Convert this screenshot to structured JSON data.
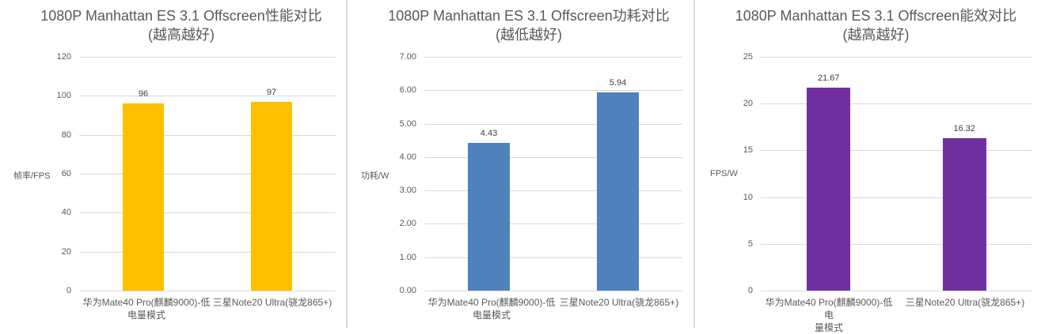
{
  "chart_data": [
    {
      "type": "bar",
      "title": "1080P Manhattan ES 3.1 Offscreen性能对比",
      "subtitle": "(越高越好)",
      "xlabel": "",
      "ylabel": "帧率/FPS",
      "categories": [
        "华为Mate40 Pro(麒麟9000)-低电量模式",
        "三星Note20 Ultra(骁龙865+)"
      ],
      "values": [
        96,
        97
      ],
      "data_labels": [
        "96",
        "97"
      ],
      "ylim": [
        0,
        120
      ],
      "yticks": [
        "0",
        "20",
        "40",
        "60",
        "80",
        "100",
        "120"
      ],
      "bar_color": "#FFC000",
      "grid": true,
      "legend": "none"
    },
    {
      "type": "bar",
      "title": "1080P Manhattan ES 3.1 Offscreen功耗对比",
      "subtitle": "(越低越好)",
      "xlabel": "",
      "ylabel": "功耗/W",
      "categories": [
        "华为Mate40 Pro(麒麟9000)-低电量模式",
        "三星Note20 Ultra(骁龙865+)"
      ],
      "values": [
        4.43,
        5.94
      ],
      "data_labels": [
        "4.43",
        "5.94"
      ],
      "ylim": [
        0,
        7
      ],
      "yticks": [
        "0.00",
        "1.00",
        "2.00",
        "3.00",
        "4.00",
        "5.00",
        "6.00",
        "7.00"
      ],
      "bar_color": "#4F81BD",
      "grid": true,
      "legend": "none"
    },
    {
      "type": "bar",
      "title": "1080P Manhattan ES 3.1 Offscreen能效对比",
      "subtitle": "(越高越好)",
      "xlabel": "",
      "ylabel": "FPS/W",
      "categories": [
        "华为Mate40 Pro(麒麟9000)-低电量模式",
        "三星Note20 Ultra(骁龙865+)"
      ],
      "values": [
        21.67,
        16.32
      ],
      "data_labels": [
        "21.67",
        "16.32"
      ],
      "ylim": [
        0,
        25
      ],
      "yticks": [
        "0",
        "5",
        "10",
        "15",
        "20",
        "25"
      ],
      "bar_color": "#7030A0",
      "grid": true,
      "legend": "none"
    }
  ],
  "panels": [
    {
      "title": "1080P Manhattan ES 3.1 Offscreen性能对比",
      "subtitle": "(越高越好)",
      "ylabel": "帧率/FPS",
      "cat_labels": [
        [
          "华为Mate40 Pro(麒麟9000)-低",
          "电量模式"
        ],
        [
          "三星Note20 Ultra(骁龙865+)"
        ]
      ]
    },
    {
      "title": "1080P Manhattan ES 3.1 Offscreen功耗对比",
      "subtitle": "(越低越好)",
      "ylabel": "功耗/W",
      "cat_labels": [
        [
          "华为Mate40 Pro(麒麟9000)-低",
          "电量模式"
        ],
        [
          "三星Note20 Ultra(骁龙865+)"
        ]
      ]
    },
    {
      "title": "1080P Manhattan ES 3.1 Offscreen能效对比",
      "subtitle": "(越高越好)",
      "ylabel": "FPS/W",
      "cat_labels": [
        [
          "华为Mate40 Pro(麒麟9000)-低电",
          "量模式"
        ],
        [
          "三星Note20 Ultra(骁龙865+)"
        ]
      ]
    }
  ]
}
